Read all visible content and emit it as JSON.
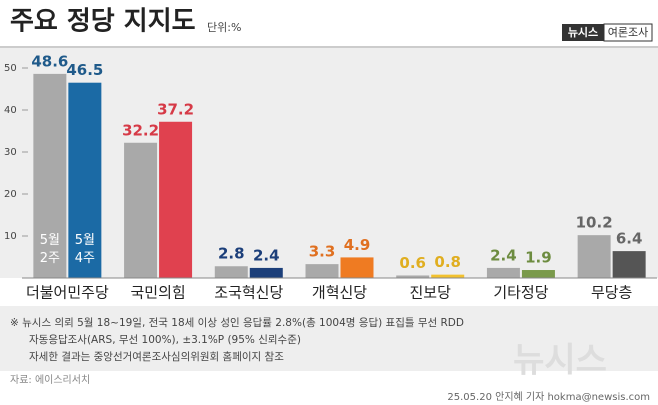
{
  "chart_data": {
    "type": "bar",
    "title": "주요 정당 지지도",
    "unit": "단위:%",
    "brand": "뉴시스",
    "brand_tag": "여론조사",
    "categories": [
      "더불어민주당",
      "국민의힘",
      "조국혁신당",
      "개혁신당",
      "진보당",
      "기타정당",
      "무당층"
    ],
    "series": [
      {
        "name": "5월 2주",
        "color": "#a9a9a9",
        "values": [
          48.6,
          32.2,
          2.8,
          3.3,
          0.6,
          2.4,
          10.2
        ]
      },
      {
        "name": "5월 4주",
        "colors": [
          "#1b6aa5",
          "#e0414f",
          "#1c3f7a",
          "#ef7b22",
          "#f2c12e",
          "#7a9a4b",
          "#555555"
        ],
        "values": [
          46.5,
          37.2,
          2.4,
          4.9,
          0.8,
          1.9,
          6.4
        ]
      }
    ],
    "label_colors": [
      "#1f5a8a",
      "#d63a47",
      "#1c3f7a",
      "#e07020",
      "#e0ae20",
      "#6d8c40",
      "#666666"
    ],
    "ylim": [
      0,
      55
    ],
    "yticks": [
      10,
      20,
      30,
      40,
      50
    ],
    "notes": [
      "※ 뉴시스 의뢰 5월 18~19일, 전국 18세 이상 성인 응답률 2.8%(총 1004명 응답) 표집틀 무선 RDD",
      "자동응답조사(ARS, 무선 100%), ±3.1%P (95% 신뢰수준)",
      "자세한 결과는 중앙선거여론조사심의위원회 홈페이지 참조"
    ],
    "source": "자료: 에이스리서치",
    "credit": "25.05.20 안지혜 기자 hokma@newsis.com",
    "watermark": "뉴시스"
  }
}
